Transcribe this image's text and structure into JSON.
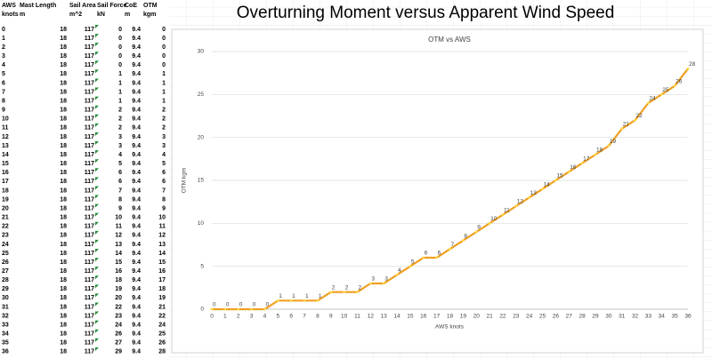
{
  "header": {
    "title": "Overturning Moment versus Apparent Wind Speed"
  },
  "table": {
    "columns": [
      {
        "name": "AWS",
        "unit": "knots"
      },
      {
        "name": "Mast Length",
        "unit": "m"
      },
      {
        "name": "Sail Area",
        "unit": "m^2"
      },
      {
        "name": "Sail Force",
        "unit": "kN"
      },
      {
        "name": "CoE",
        "unit": "m"
      },
      {
        "name": "OTM",
        "unit": "kgm"
      }
    ],
    "rows": [
      [
        0,
        18,
        117,
        0,
        9.4,
        0
      ],
      [
        1,
        18,
        117,
        0,
        9.4,
        0
      ],
      [
        2,
        18,
        117,
        0,
        9.4,
        0
      ],
      [
        3,
        18,
        117,
        0,
        9.4,
        0
      ],
      [
        4,
        18,
        117,
        0,
        9.4,
        0
      ],
      [
        5,
        18,
        117,
        1,
        9.4,
        1
      ],
      [
        6,
        18,
        117,
        1,
        9.4,
        1
      ],
      [
        7,
        18,
        117,
        1,
        9.4,
        1
      ],
      [
        8,
        18,
        117,
        1,
        9.4,
        1
      ],
      [
        9,
        18,
        117,
        2,
        9.4,
        2
      ],
      [
        10,
        18,
        117,
        2,
        9.4,
        2
      ],
      [
        11,
        18,
        117,
        2,
        9.4,
        2
      ],
      [
        12,
        18,
        117,
        3,
        9.4,
        3
      ],
      [
        13,
        18,
        117,
        3,
        9.4,
        3
      ],
      [
        14,
        18,
        117,
        4,
        9.4,
        4
      ],
      [
        15,
        18,
        117,
        5,
        9.4,
        5
      ],
      [
        16,
        18,
        117,
        6,
        9.4,
        6
      ],
      [
        17,
        18,
        117,
        6,
        9.4,
        6
      ],
      [
        18,
        18,
        117,
        7,
        9.4,
        7
      ],
      [
        19,
        18,
        117,
        8,
        9.4,
        8
      ],
      [
        20,
        18,
        117,
        9,
        9.4,
        9
      ],
      [
        21,
        18,
        117,
        10,
        9.4,
        10
      ],
      [
        22,
        18,
        117,
        11,
        9.4,
        11
      ],
      [
        23,
        18,
        117,
        12,
        9.4,
        12
      ],
      [
        24,
        18,
        117,
        13,
        9.4,
        13
      ],
      [
        25,
        18,
        117,
        14,
        9.4,
        14
      ],
      [
        26,
        18,
        117,
        15,
        9.4,
        15
      ],
      [
        27,
        18,
        117,
        16,
        9.4,
        16
      ],
      [
        28,
        18,
        117,
        18,
        9.4,
        17
      ],
      [
        29,
        18,
        117,
        19,
        9.4,
        18
      ],
      [
        30,
        18,
        117,
        20,
        9.4,
        19
      ],
      [
        31,
        18,
        117,
        22,
        9.4,
        21
      ],
      [
        32,
        18,
        117,
        23,
        9.4,
        22
      ],
      [
        33,
        18,
        117,
        24,
        9.4,
        24
      ],
      [
        34,
        18,
        117,
        26,
        9.4,
        25
      ],
      [
        35,
        18,
        117,
        27,
        9.4,
        26
      ],
      [
        36,
        18,
        117,
        29,
        9.4,
        28
      ]
    ]
  },
  "chart_data": {
    "type": "line",
    "title": "OTM vs AWS",
    "x_label": "AWS knots",
    "y_label": "OTM kgm",
    "categories": [
      0,
      1,
      2,
      3,
      4,
      5,
      6,
      7,
      8,
      9,
      10,
      11,
      12,
      13,
      14,
      15,
      16,
      17,
      18,
      19,
      20,
      21,
      22,
      23,
      24,
      25,
      26,
      27,
      28,
      29,
      30,
      31,
      32,
      33,
      34,
      35,
      36
    ],
    "values": [
      0,
      0,
      0,
      0,
      0,
      1,
      1,
      1,
      1,
      2,
      2,
      2,
      3,
      3,
      4,
      5,
      6,
      6,
      7,
      8,
      9,
      10,
      11,
      12,
      13,
      14,
      15,
      16,
      17,
      18,
      19,
      21,
      22,
      24,
      25,
      26,
      28
    ],
    "color": "#f0a020",
    "ylim": [
      0,
      30
    ],
    "yticks": [
      0,
      5,
      10,
      15,
      20,
      25,
      30
    ],
    "grid": true,
    "data_labels": true
  }
}
